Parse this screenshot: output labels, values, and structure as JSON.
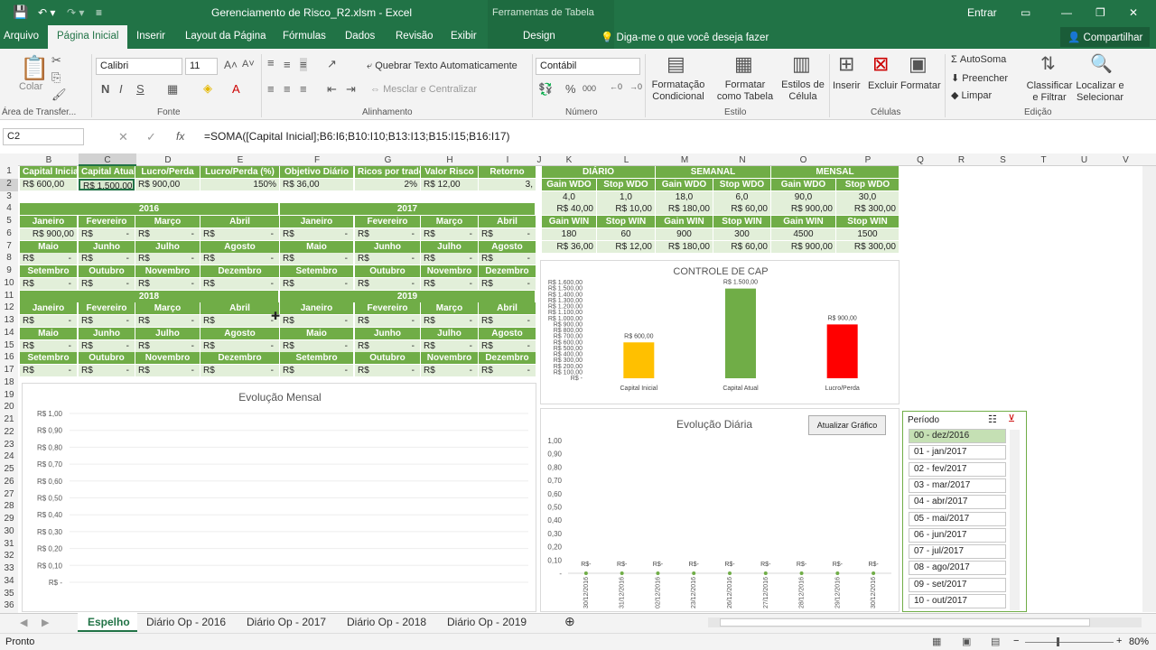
{
  "title": {
    "file": "Gerenciamento de Risco_R2.xlsm - Excel",
    "context": "Ferramentas de Tabela",
    "signin": "Entrar"
  },
  "tabs": [
    "Arquivo",
    "Página Inicial",
    "Inserir",
    "Layout da Página",
    "Fórmulas",
    "Dados",
    "Revisão",
    "Exibir",
    "Design"
  ],
  "tell": "Diga-me o que você deseja fazer",
  "share": "Compartilhar",
  "ribbon": {
    "paste": "Colar",
    "clip": "Área de Transfer...",
    "font_name": "Calibri",
    "font_size": "11",
    "font_group": "Fonte",
    "wrap": "Quebrar Texto Automaticamente",
    "merge": "Mesclar e Centralizar",
    "align_group": "Alinhamento",
    "numfmt": "Contábil",
    "num_group": "Número",
    "cond": "Formatação Condicional",
    "fmt_table": "Formatar como Tabela",
    "styles": "Estilos de Célula",
    "styles_group": "Estilo",
    "insert": "Inserir",
    "delete": "Excluir",
    "format": "Formatar",
    "cells_group": "Células",
    "autosum": "AutoSoma",
    "fill": "Preencher",
    "clear": "Limpar",
    "sort": "Classificar e Filtrar",
    "find": "Localizar e Selecionar",
    "edit_group": "Edição"
  },
  "namebox": "C2",
  "formula": "=SOMA([Capital Inicial];B6:I6;B10:I10;B13:I13;B15:I15;B16:I17)",
  "columns": [
    "B",
    "C",
    "D",
    "E",
    "F",
    "G",
    "H",
    "I",
    "J",
    "K",
    "L",
    "M",
    "N",
    "O",
    "P",
    "Q",
    "R",
    "S",
    "T",
    "U",
    "V"
  ],
  "rows": [
    "1",
    "2",
    "3",
    "4",
    "5",
    "6",
    "7",
    "8",
    "9",
    "10",
    "11",
    "12",
    "13",
    "14",
    "15",
    "16",
    "17",
    "18",
    "19",
    "20",
    "21",
    "22",
    "23",
    "24",
    "25",
    "26",
    "27",
    "28",
    "29",
    "30",
    "31",
    "32",
    "33",
    "34",
    "35",
    "36"
  ],
  "headers": [
    "Capital Inicial",
    "Capital Atual",
    "Lucro/Perda",
    "Lucro/Perda (%)",
    "Objetivo Diário",
    "Ricos por trade",
    "Valor Risco",
    "Retorno"
  ],
  "row2": [
    "R$ 600,00",
    "R$ 1.500,00",
    "R$ 900,00",
    "150%",
    "R$ 36,00",
    "2%",
    "R$ 12,00",
    "3,"
  ],
  "years": [
    "2016",
    "2017",
    "2018",
    "2019"
  ],
  "months": [
    "Janeiro",
    "Fevereiro",
    "Março",
    "Abril",
    "Maio",
    "Junho",
    "Julho",
    "Agosto",
    "Setembro",
    "Outubro",
    "Novembro",
    "Dezembro"
  ],
  "rs": "R$",
  "dash": "-",
  "jan2016": "R$ 900,00",
  "right_table": {
    "periods": [
      "DIÁRIO",
      "SEMANAL",
      "MENSAL"
    ],
    "h1": [
      "Gain WDO",
      "Stop WDO",
      "Gain WDO",
      "Stop WDO",
      "Gain WDO",
      "Stop WDO"
    ],
    "r3": [
      "4,0",
      "1,0",
      "18,0",
      "6,0",
      "90,0",
      "30,0"
    ],
    "r4": [
      "R$ 40,00",
      "R$ 10,00",
      "R$ 180,00",
      "R$ 60,00",
      "R$ 900,00",
      "R$ 300,00"
    ],
    "h2": [
      "Gain WIN",
      "Stop WIN",
      "Gain WIN",
      "Stop WIN",
      "Gain WIN",
      "Stop WIN"
    ],
    "r6": [
      "180",
      "60",
      "900",
      "300",
      "4500",
      "1500"
    ],
    "r7": [
      "R$ 36,00",
      "R$ 12,00",
      "R$ 180,00",
      "R$ 60,00",
      "R$ 900,00",
      "R$ 300,00"
    ]
  },
  "chart_data": [
    {
      "type": "bar",
      "title": "CONTROLE DE CAP",
      "categories": [
        "Capital Inicial",
        "Capital Atual",
        "Lucro/Perda"
      ],
      "values": [
        600,
        1500,
        900
      ],
      "labels": [
        "R$ 600,00",
        "R$ 1.500,00",
        "R$ 900,00"
      ],
      "colors": [
        "#ffc000",
        "#70ad47",
        "#ff0000"
      ],
      "ylim": [
        0,
        1600
      ],
      "yticks": [
        "R$ 1.600,00",
        "R$ 1.500,00",
        "R$ 1.400,00",
        "R$ 1.300,00",
        "R$ 1.200,00",
        "R$ 1.100,00",
        "R$ 1.000,00",
        "R$ 900,00",
        "R$ 800,00",
        "R$ 700,00",
        "R$ 600,00",
        "R$ 500,00",
        "R$ 400,00",
        "R$ 300,00",
        "R$ 200,00",
        "R$ 100,00",
        "R$ -"
      ]
    },
    {
      "type": "line",
      "title": "Evolução Mensal",
      "yticks": [
        "R$ 1,00",
        "R$ 0,90",
        "R$ 0,80",
        "R$ 0,70",
        "R$ 0,60",
        "R$ 0,50",
        "R$ 0,40",
        "R$ 0,30",
        "R$ 0,20",
        "R$ 0,10",
        "R$ -"
      ],
      "ylim": [
        0,
        1
      ]
    },
    {
      "type": "line",
      "title": "Evolução Diária",
      "button": "Atualizar Gráfico",
      "yticks": [
        "1,00",
        "0,90",
        "0,80",
        "0,70",
        "0,60",
        "0,50",
        "0,40",
        "0,30",
        "0,20",
        "0,10",
        "-"
      ],
      "x": [
        "30/12/2016",
        "31/12/2016",
        "02/12/2016",
        "23/12/2016",
        "26/12/2016",
        "27/12/2016",
        "28/12/2016",
        "29/12/2016",
        "30/12/2016"
      ],
      "values": [
        0,
        0,
        0,
        0,
        0,
        0,
        0,
        0,
        0
      ],
      "labels": [
        "R$-",
        "R$-",
        "R$-",
        "R$-",
        "R$-",
        "R$-",
        "R$-",
        "R$-",
        "R$-"
      ],
      "ylim": [
        0,
        1
      ]
    }
  ],
  "slicer": {
    "title": "Período",
    "items": [
      "00 - dez/2016",
      "01 - jan/2017",
      "02 - fev/2017",
      "03 - mar/2017",
      "04 - abr/2017",
      "05 - mai/2017",
      "06 - jun/2017",
      "07 - jul/2017",
      "08 - ago/2017",
      "09 - set/2017",
      "10 - out/2017"
    ]
  },
  "sheets": [
    "Espelho",
    "Diário Op - 2016",
    "Diário Op - 2017",
    "Diário Op - 2018",
    "Diário Op - 2019"
  ],
  "status": {
    "ready": "Pronto",
    "zoom": "80%"
  }
}
